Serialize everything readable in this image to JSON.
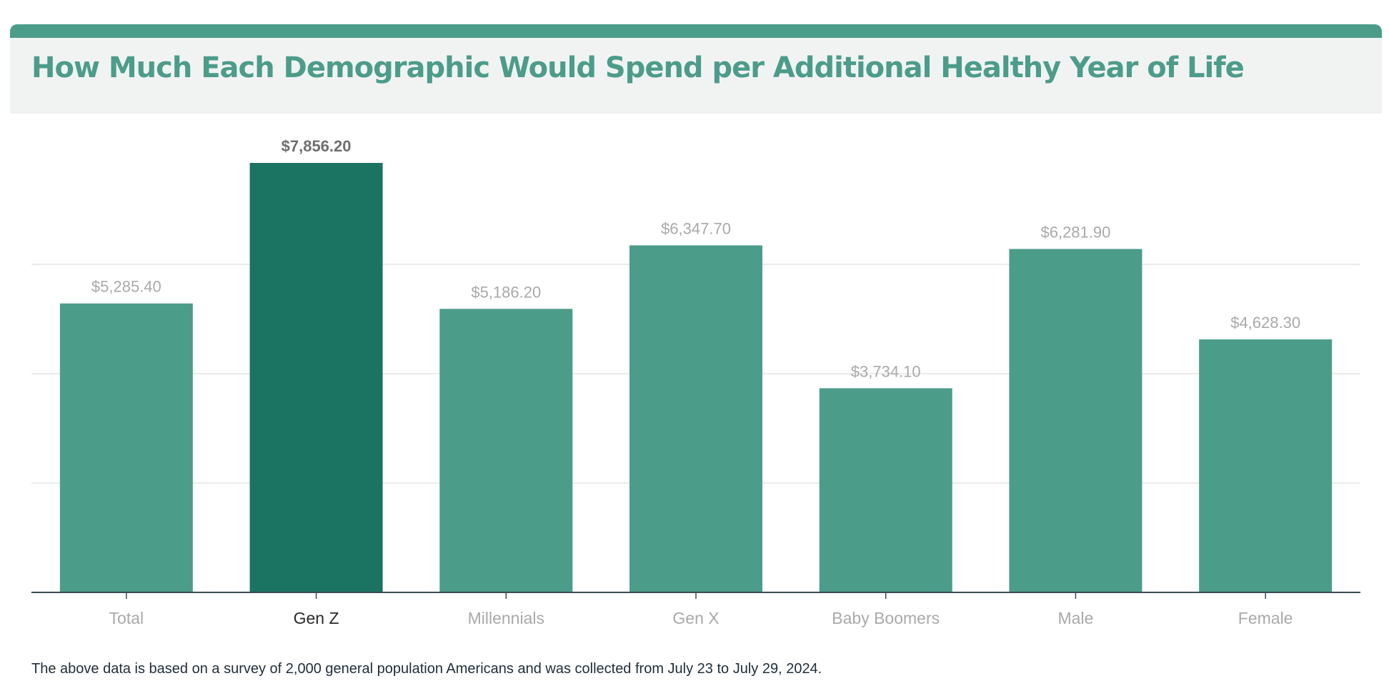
{
  "chart_data": {
    "type": "bar",
    "title": "How Much Each Demographic Would Spend per Additional Healthy Year of Life",
    "categories": [
      "Total",
      "Gen Z",
      "Millennials",
      "Gen X",
      "Baby Boomers",
      "Male",
      "Female"
    ],
    "values": [
      5285.4,
      7856.2,
      5186.2,
      6347.7,
      3734.1,
      6281.9,
      4628.3
    ],
    "value_labels": [
      "$5,285.40",
      "$7,856.20",
      "$5,186.20",
      "$6,347.70",
      "$3,734.10",
      "$6,281.90",
      "$4,628.30"
    ],
    "highlight_index": 1,
    "ylim": [
      0,
      8000
    ],
    "gridlines": [
      2000,
      4000,
      6000
    ],
    "xlabel": "",
    "ylabel": "",
    "grid": true,
    "colors": {
      "bar": "#4c9c8a",
      "highlight_bar": "#1a7461",
      "label": "#a9a9a9",
      "highlight_label": "#6f6f6f",
      "highlight_category": "#2a2a2a",
      "gridline": "#e3e3e3",
      "axis": "#3a4a56"
    }
  },
  "footnote": "The above data is based on a survey of 2,000 general population Americans and was collected from July 23 to July 29, 2024."
}
